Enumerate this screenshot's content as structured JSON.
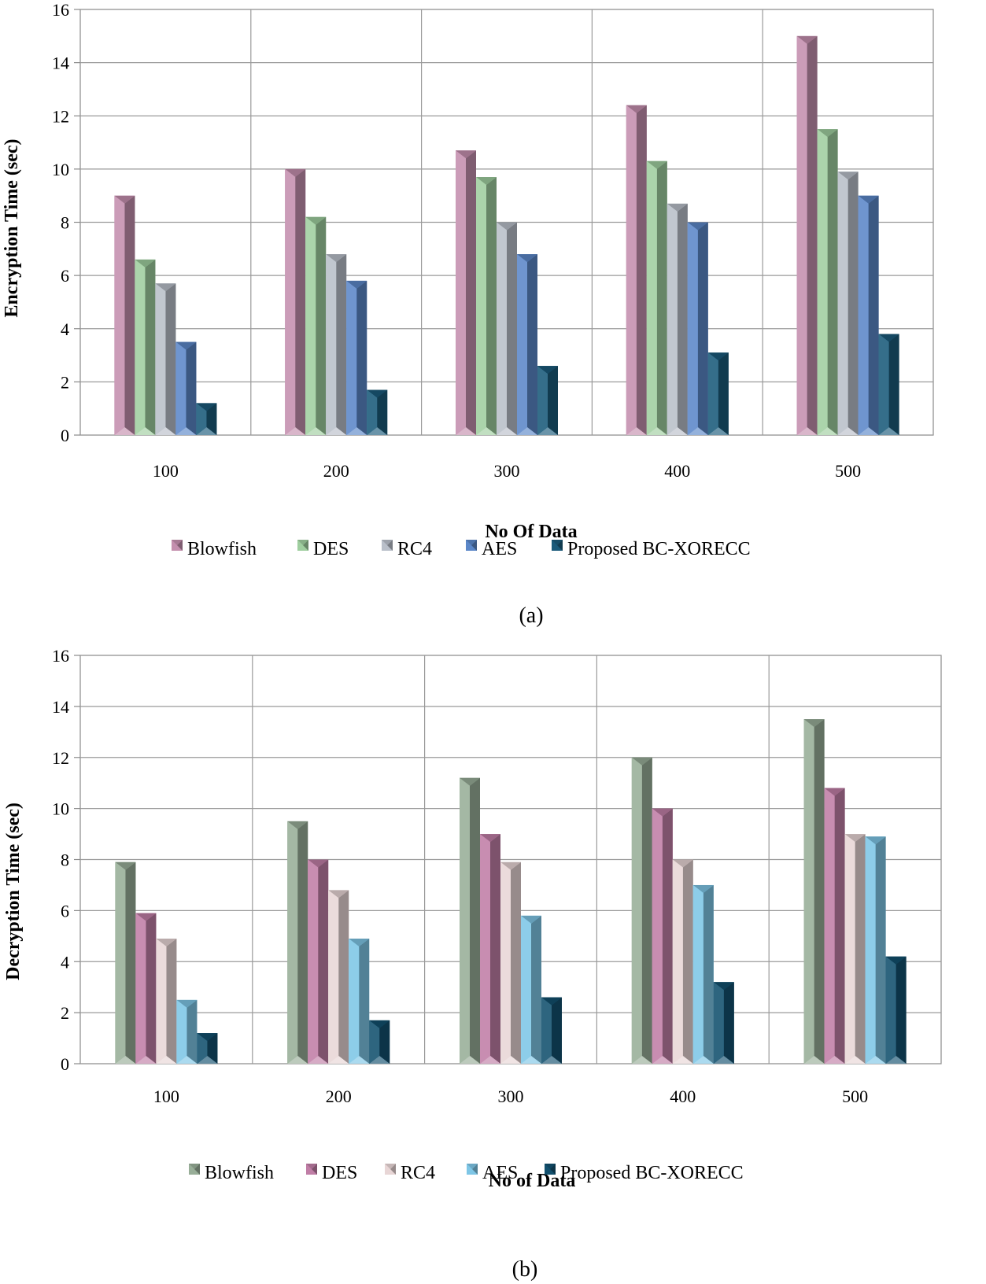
{
  "chart_data": [
    {
      "type": "bar",
      "caption": "(a)",
      "xlabel": "No Of Data",
      "ylabel": "Encryption Time (sec)",
      "ylim": [
        0,
        16
      ],
      "yticks": [
        "0",
        "2",
        "4",
        "6",
        "8",
        "10",
        "12",
        "14",
        "16"
      ],
      "categories": [
        "100",
        "200",
        "300",
        "400",
        "500"
      ],
      "legend_position": "bottom",
      "grid": true,
      "series": [
        {
          "name": "Blowfish",
          "color": "#c48fae",
          "values": [
            9.0,
            10.0,
            10.7,
            12.4,
            15.0
          ]
        },
        {
          "name": "DES",
          "color": "#9fce9f",
          "values": [
            6.6,
            8.2,
            9.7,
            10.3,
            11.5
          ]
        },
        {
          "name": "RC4",
          "color": "#b9bfc9",
          "values": [
            5.7,
            6.8,
            8.0,
            8.7,
            9.9
          ]
        },
        {
          "name": "AES",
          "color": "#5b87c8",
          "values": [
            3.5,
            5.8,
            6.8,
            8.0,
            9.0
          ]
        },
        {
          "name": "Proposed BC-XORECC",
          "color": "#1a5a7a",
          "values": [
            1.2,
            1.7,
            2.6,
            3.1,
            3.8
          ]
        }
      ]
    },
    {
      "type": "bar",
      "caption": "(b)",
      "xlabel": "No of Data",
      "ylabel": "Decryption Time (sec)",
      "ylim": [
        0,
        16
      ],
      "yticks": [
        "0",
        "2",
        "4",
        "6",
        "8",
        "10",
        "12",
        "14",
        "16"
      ],
      "categories": [
        "100",
        "200",
        "300",
        "400",
        "500"
      ],
      "legend_position": "bottom",
      "grid": true,
      "series": [
        {
          "name": "Blowfish",
          "color": "#98ae98",
          "values": [
            7.9,
            9.5,
            11.2,
            12.0,
            13.5
          ]
        },
        {
          "name": "DES",
          "color": "#c07ea6",
          "values": [
            5.9,
            8.0,
            9.0,
            10.0,
            10.8
          ]
        },
        {
          "name": "RC4",
          "color": "#e8d6d6",
          "values": [
            4.9,
            6.8,
            7.9,
            8.0,
            9.0
          ]
        },
        {
          "name": "AES",
          "color": "#7ec6e6",
          "values": [
            2.5,
            4.9,
            5.8,
            7.0,
            8.9
          ]
        },
        {
          "name": "Proposed BC-XORECC",
          "color": "#12506e",
          "values": [
            1.2,
            1.7,
            2.6,
            3.2,
            4.2
          ]
        }
      ]
    }
  ]
}
